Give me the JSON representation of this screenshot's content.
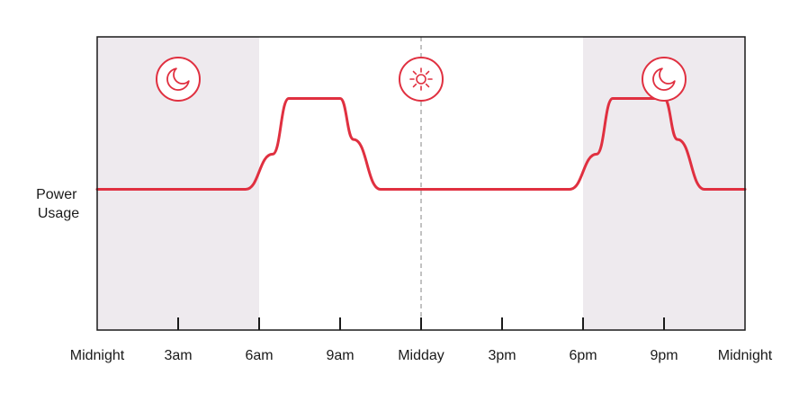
{
  "chart_data": {
    "type": "line",
    "ylabel_lines": [
      "Power",
      "Usage"
    ],
    "xlabel": "",
    "title": "",
    "x_range": [
      0,
      24
    ],
    "y_range": [
      0,
      10
    ],
    "ticks": [
      {
        "hour": 0,
        "label": "Midnight"
      },
      {
        "hour": 3,
        "label": "3am"
      },
      {
        "hour": 6,
        "label": "6am"
      },
      {
        "hour": 9,
        "label": "9am"
      },
      {
        "hour": 12,
        "label": "Midday"
      },
      {
        "hour": 15,
        "label": "3pm"
      },
      {
        "hour": 18,
        "label": "6pm"
      },
      {
        "hour": 21,
        "label": "9pm"
      },
      {
        "hour": 24,
        "label": "Midnight"
      }
    ],
    "night_periods": [
      [
        0,
        6
      ],
      [
        18,
        24
      ]
    ],
    "midday_marker_hour": 12,
    "series": [
      {
        "x": [
          0,
          5.5,
          6.5,
          7.1,
          9.0,
          9.5,
          10.5,
          12,
          17.5,
          18.5,
          19.1,
          21.0,
          21.5,
          22.5,
          24
        ],
        "values": [
          4.8,
          4.8,
          6.0,
          7.9,
          7.9,
          6.5,
          4.8,
          4.8,
          4.8,
          6.0,
          7.9,
          7.9,
          6.5,
          4.8,
          4.8
        ]
      }
    ],
    "icons": [
      {
        "name": "moon-icon",
        "hour": 3
      },
      {
        "name": "sun-icon",
        "hour": 12
      },
      {
        "name": "moon-icon",
        "hour": 21
      }
    ],
    "colors": {
      "line": "#e03040",
      "night_shade": "#eeeaee",
      "axis": "#1a1a1a",
      "midday_line": "#9a9a9a"
    },
    "grid": false
  }
}
